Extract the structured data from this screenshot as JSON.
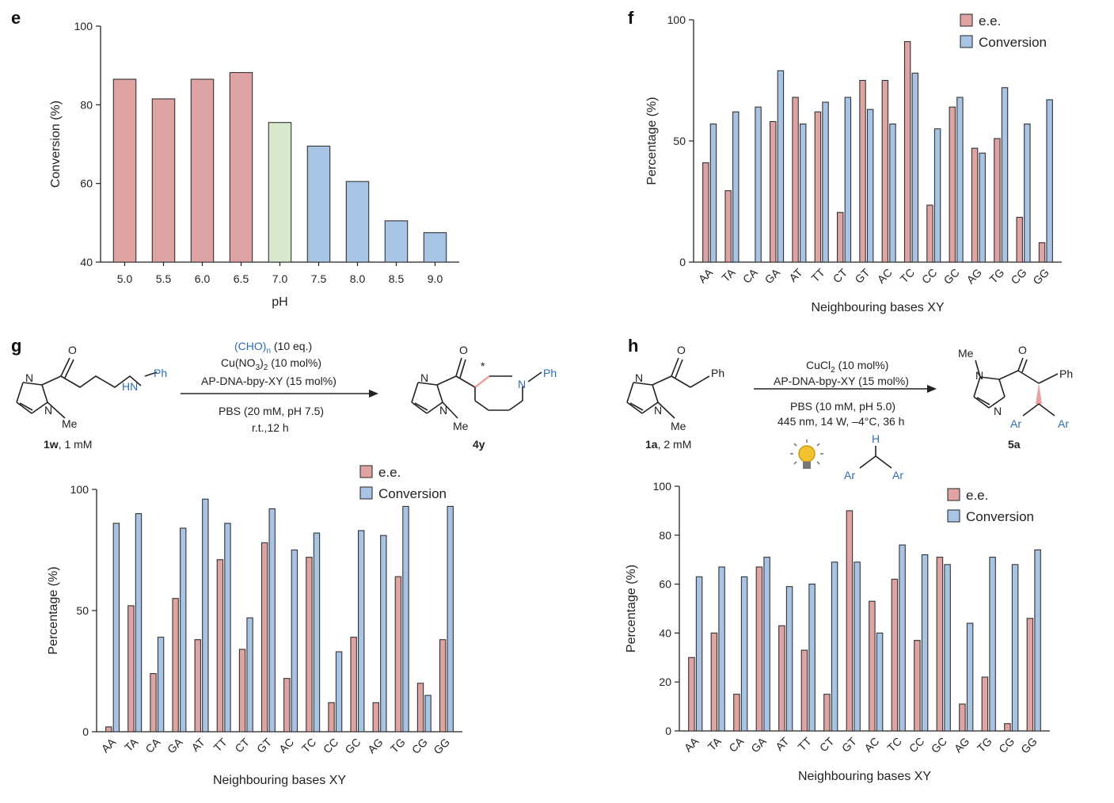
{
  "colors": {
    "ee": "#e0a3a3",
    "conversion": "#a8c4e4",
    "neutral": "#d8e8cc",
    "stroke": "#333333",
    "blue_text": "#2e6db4",
    "pink_bond": "#e8a0a0"
  },
  "panels": {
    "e": "e",
    "f": "f",
    "g": "g",
    "h": "h"
  },
  "chart_data": [
    {
      "id": "e",
      "type": "bar",
      "categories": [
        "5.0",
        "5.5",
        "6.0",
        "6.5",
        "7.0",
        "7.5",
        "8.0",
        "8.5",
        "9.0"
      ],
      "values": [
        86.5,
        81.5,
        86.5,
        88.2,
        75.5,
        69.5,
        60.5,
        50.5,
        47.5
      ],
      "bar_colors": [
        "ee",
        "ee",
        "ee",
        "ee",
        "neutral",
        "conversion",
        "conversion",
        "conversion",
        "conversion"
      ],
      "xlabel": "pH",
      "ylabel": "Conversion (%)",
      "ylim": [
        40,
        100
      ],
      "yticks": [
        "40",
        "60",
        "80",
        "100"
      ]
    },
    {
      "id": "f",
      "type": "bar",
      "categories": [
        "AA",
        "TA",
        "CA",
        "GA",
        "AT",
        "TT",
        "CT",
        "GT",
        "AC",
        "TC",
        "CC",
        "GC",
        "AG",
        "TG",
        "CG",
        "GG"
      ],
      "series": [
        {
          "name": "e.e.",
          "values": [
            41,
            29.5,
            0,
            58,
            68,
            62,
            20.5,
            75,
            75,
            91,
            23.5,
            64,
            47,
            51,
            18.5,
            8
          ]
        },
        {
          "name": "Conversion",
          "values": [
            57,
            62,
            64,
            79,
            57,
            66,
            68,
            63,
            57,
            78,
            55,
            68,
            45,
            72,
            57,
            67
          ]
        }
      ],
      "legend": [
        "e.e.",
        "Conversion"
      ],
      "xlabel": "Neighbouring bases XY",
      "ylabel": "Percentage (%)",
      "ylim": [
        0,
        100
      ],
      "yticks": [
        "0",
        "50",
        "100"
      ]
    },
    {
      "id": "g",
      "type": "bar",
      "categories": [
        "AA",
        "TA",
        "CA",
        "GA",
        "AT",
        "TT",
        "CT",
        "GT",
        "AC",
        "TC",
        "CC",
        "GC",
        "AG",
        "TG",
        "CG",
        "GG"
      ],
      "series": [
        {
          "name": "e.e.",
          "values": [
            2,
            52,
            24,
            55,
            38,
            71,
            34,
            78,
            22,
            72,
            12,
            39,
            12,
            64,
            20,
            38
          ]
        },
        {
          "name": "Conversion",
          "values": [
            86,
            90,
            39,
            84,
            96,
            86,
            47,
            92,
            75,
            82,
            33,
            83,
            81,
            93,
            15,
            93
          ]
        }
      ],
      "legend": [
        "e.e.",
        "Conversion"
      ],
      "xlabel": "Neighbouring bases XY",
      "ylabel": "Percentage (%)",
      "ylim": [
        0,
        100
      ],
      "yticks": [
        "0",
        "50",
        "100"
      ]
    },
    {
      "id": "h",
      "type": "bar",
      "categories": [
        "AA",
        "TA",
        "CA",
        "GA",
        "AT",
        "TT",
        "CT",
        "GT",
        "AC",
        "TC",
        "CC",
        "GC",
        "AG",
        "TG",
        "CG",
        "GG"
      ],
      "series": [
        {
          "name": "e.e.",
          "values": [
            30,
            40,
            15,
            67,
            43,
            33,
            15,
            90,
            53,
            62,
            37,
            71,
            11,
            22,
            3,
            46
          ]
        },
        {
          "name": "Conversion",
          "values": [
            63,
            67,
            63,
            71,
            59,
            60,
            69,
            69,
            40,
            76,
            72,
            68,
            44,
            71,
            68,
            74
          ]
        }
      ],
      "legend": [
        "e.e.",
        "Conversion"
      ],
      "xlabel": "Neighbouring bases XY",
      "ylabel": "Percentage (%)",
      "ylim": [
        0,
        100
      ],
      "yticks": [
        "0",
        "20",
        "40",
        "60",
        "80",
        "100"
      ]
    }
  ],
  "scheme_g": {
    "reagent_1": "(CHO)",
    "reagent_1_sub": "n",
    "reagent_1_rest": " (10 eq.)",
    "reagent_2_a": "Cu(NO",
    "reagent_2_sub1": "3",
    "reagent_2_b": ")",
    "reagent_2_sub2": "2",
    "reagent_2_rest": " (10 mol%)",
    "reagent_3": "AP-DNA-bpy-XY (15 mol%)",
    "cond_1": "PBS (20 mM, pH 7.5)",
    "cond_2": "r.t.,12 h",
    "sm_code": "1w",
    "sm_conc": ", 1 mM",
    "product_code": "4y",
    "atom_N": "N",
    "atom_O": "O",
    "atom_Me": "Me",
    "atom_HN": "HN",
    "atom_Ph": "Ph",
    "stereo": "*"
  },
  "scheme_h": {
    "reagent_1_a": "CuCl",
    "reagent_1_sub": "2",
    "reagent_1_rest": " (10 mol%)",
    "reagent_2": "AP-DNA-bpy-XY (15 mol%)",
    "cond_1": "PBS (10 mM, pH 5.0)",
    "cond_2": "445 nm, 14 W, –4°C, 36 h",
    "sm_code": "1a",
    "sm_conc": ", 2 mM",
    "product_code": "5a",
    "atom_N": "N",
    "atom_O": "O",
    "atom_Me": "Me",
    "atom_Ph": "Ph",
    "atom_Ar": "Ar",
    "atom_H": "H"
  }
}
